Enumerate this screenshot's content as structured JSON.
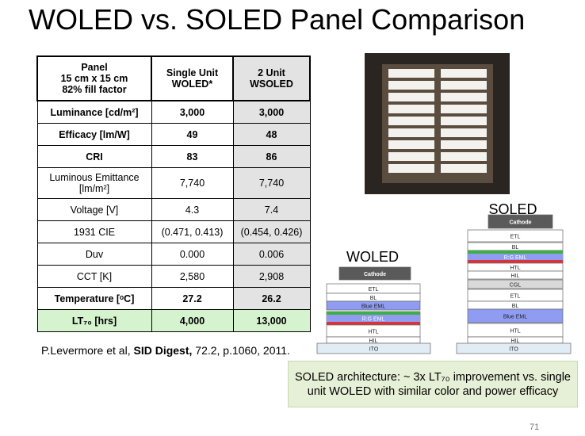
{
  "title": "WOLED vs. SOLED Panel Comparison",
  "table": {
    "header": [
      "Panel\n15 cm x 15 cm\n82% fill factor",
      "Single Unit\nWOLED*",
      "2 Unit\nWSOLED"
    ],
    "rows": [
      [
        "Luminance [cd/m²]",
        "3,000",
        "3,000"
      ],
      [
        "Efficacy [lm/W]",
        "49",
        "48"
      ],
      [
        "CRI",
        "83",
        "86"
      ],
      [
        "Luminous Emittance\n[lm/m²]",
        "7,740",
        "7,740"
      ],
      [
        "Voltage [V]",
        "4.3",
        "7.4"
      ],
      [
        "1931 CIE",
        "(0.471, 0.413)",
        "(0.454, 0.426)"
      ],
      [
        "Duv",
        "0.000",
        "0.006"
      ],
      [
        "CCT [K]",
        "2,580",
        "2,908"
      ],
      [
        "Temperature [ᵒC]",
        "27.2",
        "26.2"
      ],
      [
        "LT₇₀ [hrs]",
        "4,000",
        "13,000"
      ]
    ]
  },
  "citation": {
    "authors": "P.Levermore et al,",
    "journal": "SID Digest,",
    "details": "72.2, p.1060, 2011."
  },
  "woled": {
    "label": "WOLED",
    "layers": [
      "Cathode",
      "ETL",
      "BL",
      "Blue EML",
      "R:G EML",
      "HTL",
      "HIL",
      "ITO"
    ]
  },
  "soled": {
    "label": "SOLED",
    "layers": [
      "Cathode",
      "ETL",
      "BL",
      "R:G EML",
      "HTL",
      "HIL",
      "CGL",
      "ETL",
      "BL",
      "Blue EML",
      "HTL",
      "HIL",
      "ITO"
    ]
  },
  "callout": "SOLED architecture: ~ 3x LT₇₀ improvement vs. single unit WOLED with similar color and power efficacy",
  "page_number": "71"
}
